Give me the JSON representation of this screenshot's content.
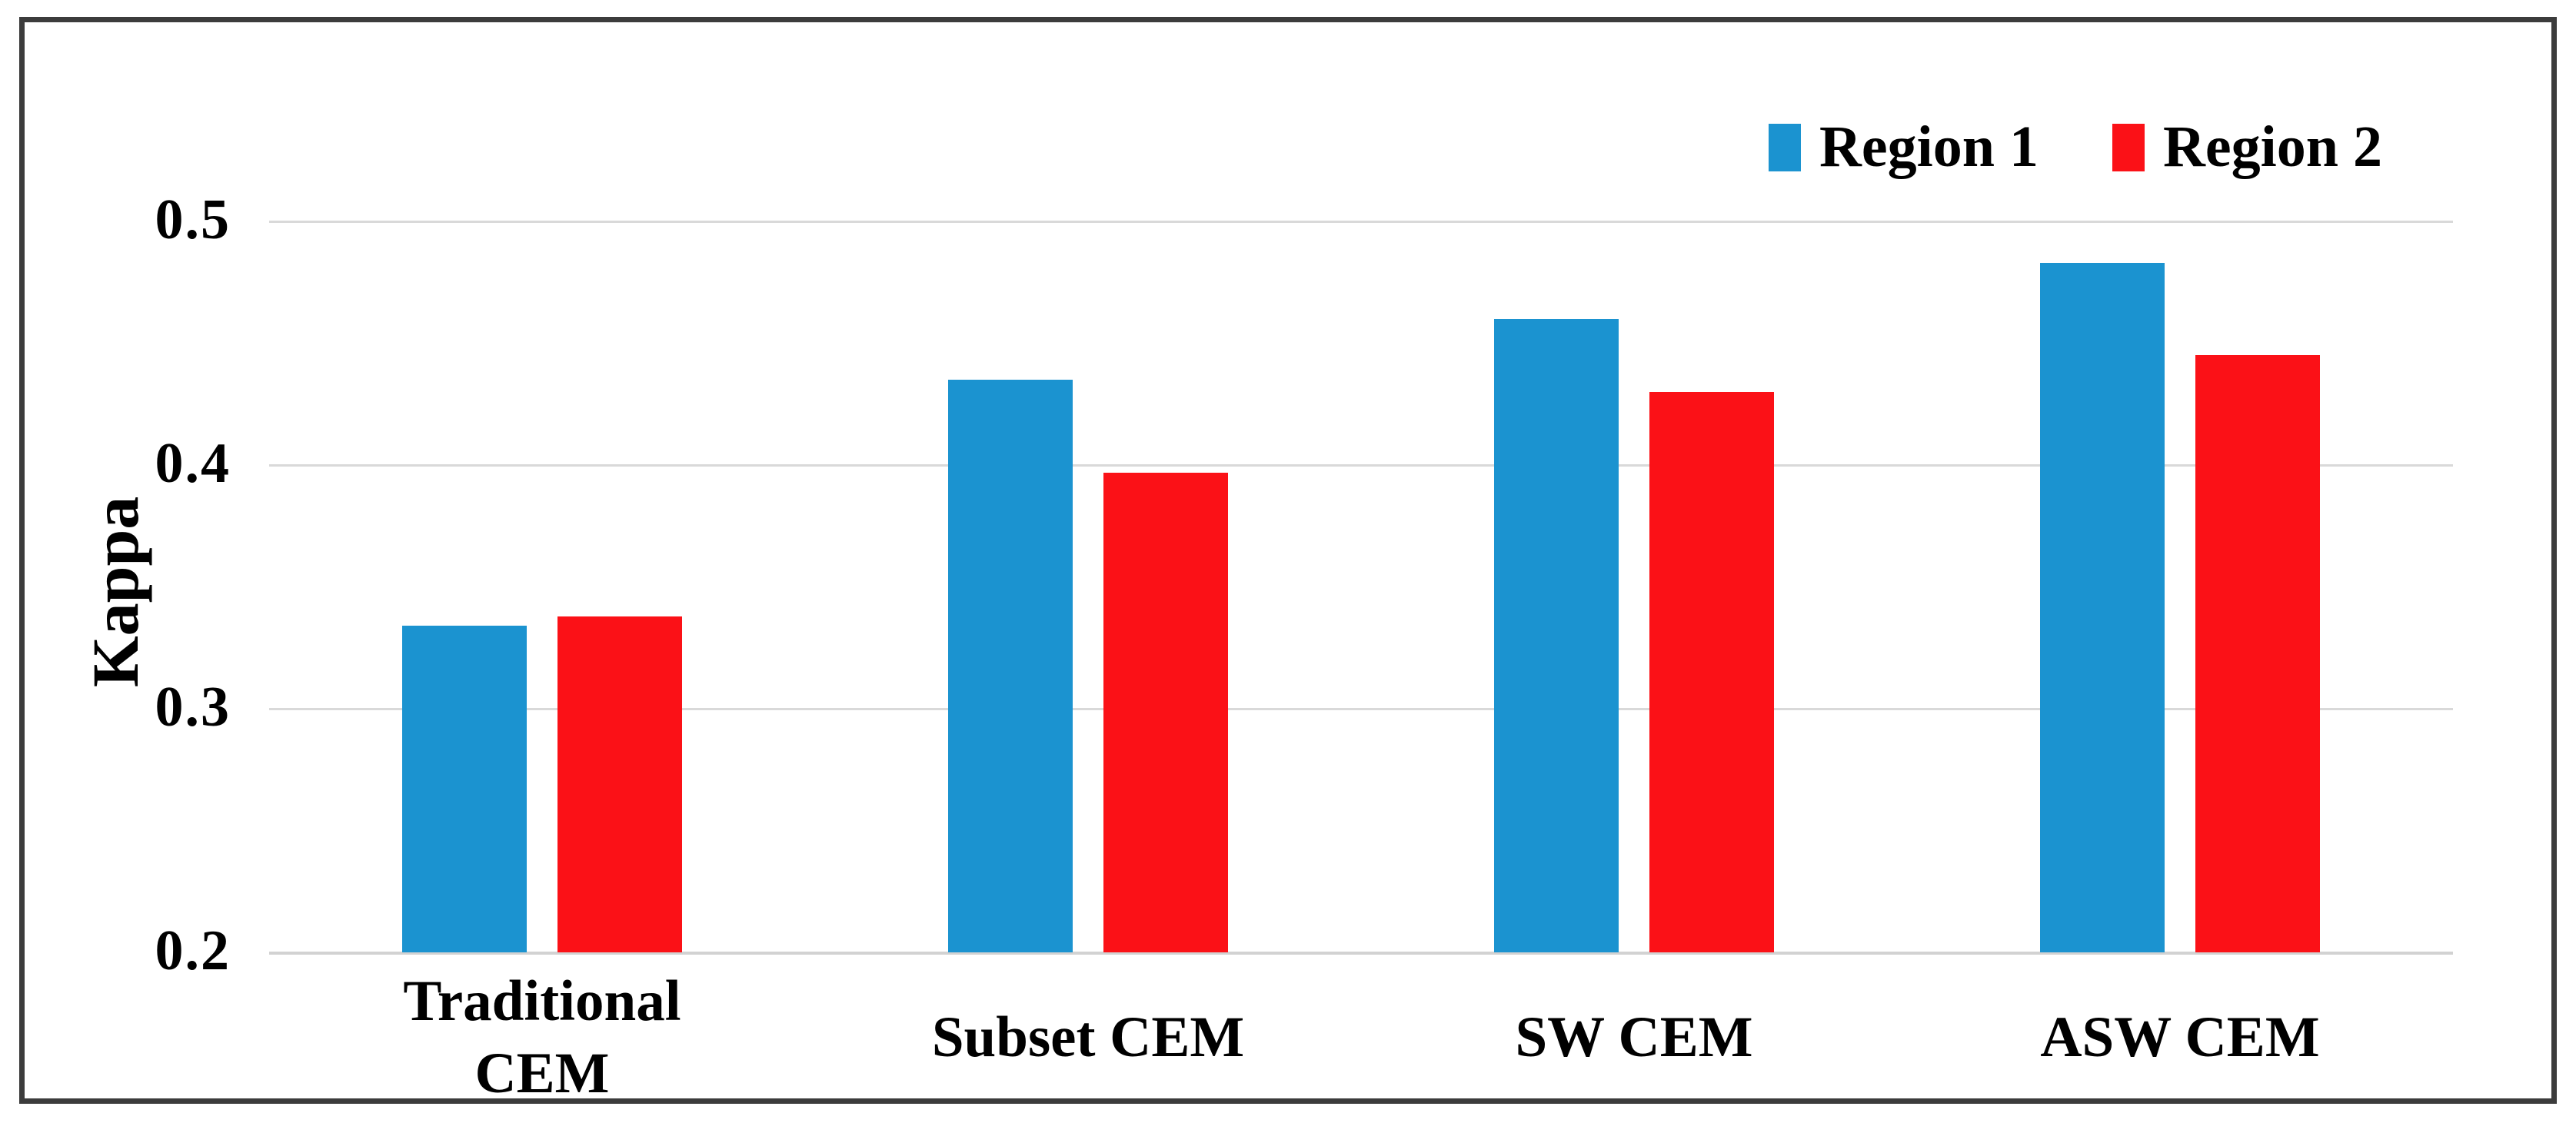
{
  "figure": {
    "background_color": "#FFFFFF",
    "frame_color": "#3C3C3C"
  },
  "y_axis": {
    "title": "Kappa"
  },
  "chart_data": {
    "type": "bar",
    "title": "",
    "xlabel": "",
    "ylabel": "Kappa",
    "categories": [
      "Traditional CEM",
      "Subset CEM",
      "SW CEM",
      "ASW CEM"
    ],
    "series": [
      {
        "name": "Region 1",
        "color": "#1B93D0",
        "values": [
          0.334,
          0.435,
          0.46,
          0.483
        ]
      },
      {
        "name": "Region 2",
        "color": "#FB1117",
        "values": [
          0.338,
          0.397,
          0.43,
          0.445
        ]
      }
    ],
    "ylim": [
      0.2,
      0.5
    ],
    "yticks": [
      {
        "label": "0.5",
        "value": 0.5
      },
      {
        "label": "0.4",
        "value": 0.4
      },
      {
        "label": "0.3",
        "value": 0.3
      },
      {
        "label": "0.2",
        "value": 0.2
      }
    ],
    "grid": "horizontal",
    "gridline_color": "#D9D9D9",
    "legend_position": "top-right"
  }
}
